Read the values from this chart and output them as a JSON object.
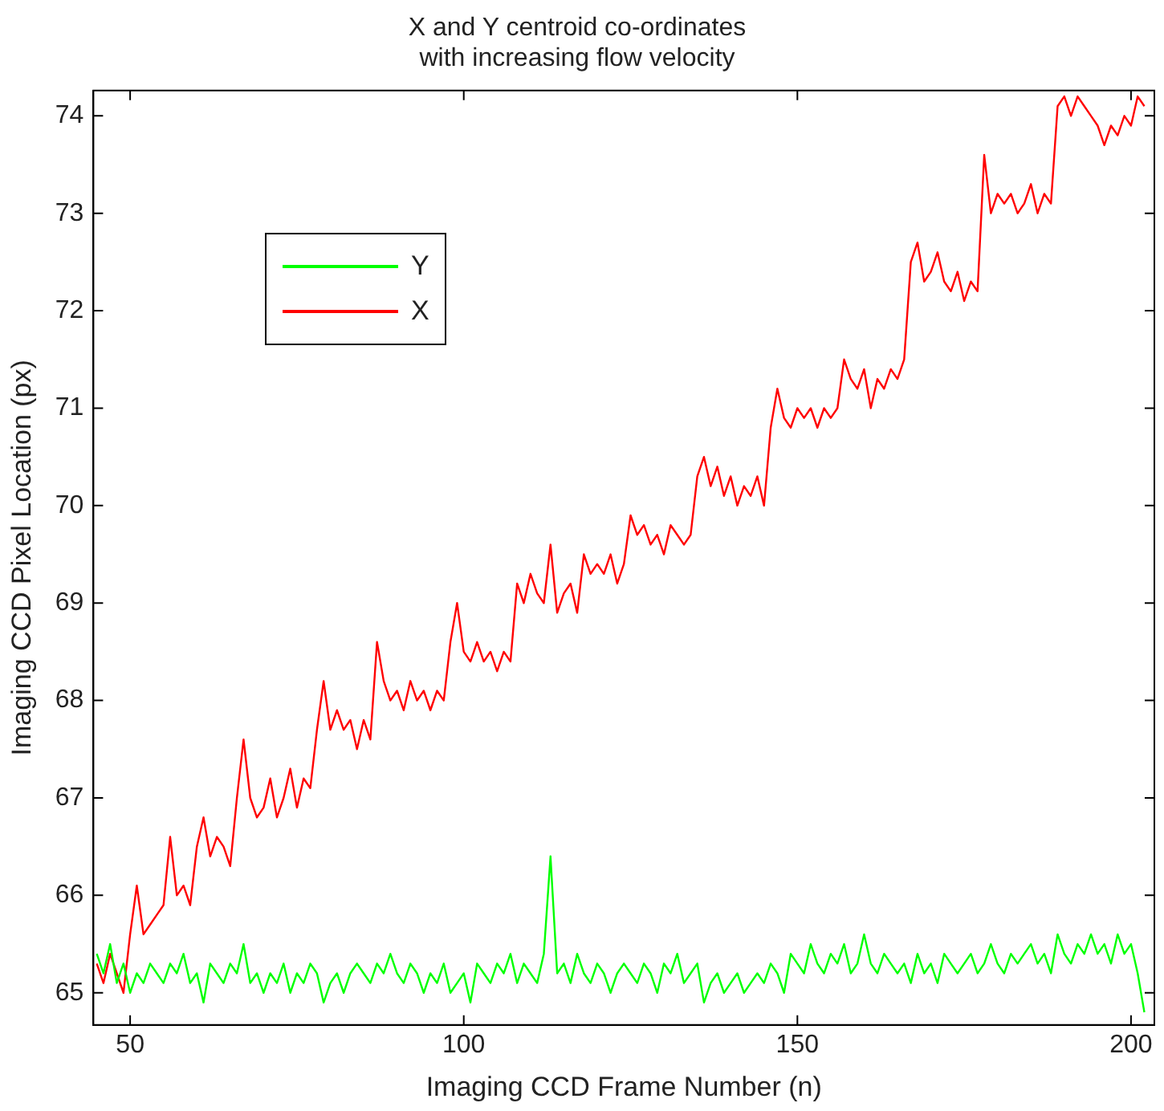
{
  "chart_data": {
    "type": "line",
    "title": "X and Y centroid co-ordinates\nwith increasing flow velocity",
    "xlabel": "Imaging CCD Frame Number (n)",
    "ylabel": "Imaging CCD Pixel Location (px)",
    "x": [
      45,
      46,
      47,
      48,
      49,
      50,
      51,
      52,
      53,
      54,
      55,
      56,
      57,
      58,
      59,
      60,
      61,
      62,
      63,
      64,
      65,
      66,
      67,
      68,
      69,
      70,
      71,
      72,
      73,
      74,
      75,
      76,
      77,
      78,
      79,
      80,
      81,
      82,
      83,
      84,
      85,
      86,
      87,
      88,
      89,
      90,
      91,
      92,
      93,
      94,
      95,
      96,
      97,
      98,
      99,
      100,
      101,
      102,
      103,
      104,
      105,
      106,
      107,
      108,
      109,
      110,
      111,
      112,
      113,
      114,
      115,
      116,
      117,
      118,
      119,
      120,
      121,
      122,
      123,
      124,
      125,
      126,
      127,
      128,
      129,
      130,
      131,
      132,
      133,
      134,
      135,
      136,
      137,
      138,
      139,
      140,
      141,
      142,
      143,
      144,
      145,
      146,
      147,
      148,
      149,
      150,
      151,
      152,
      153,
      154,
      155,
      156,
      157,
      158,
      159,
      160,
      161,
      162,
      163,
      164,
      165,
      166,
      167,
      168,
      169,
      170,
      171,
      172,
      173,
      174,
      175,
      176,
      177,
      178,
      179,
      180,
      181,
      182,
      183,
      184,
      185,
      186,
      187,
      188,
      189,
      190,
      191,
      192,
      193,
      194,
      195,
      196,
      197,
      198,
      199,
      200,
      201,
      202
    ],
    "series": [
      {
        "name": "Y",
        "color": "#00ff00",
        "values": [
          65.4,
          65.2,
          65.5,
          65.1,
          65.3,
          65.0,
          65.2,
          65.1,
          65.3,
          65.2,
          65.1,
          65.3,
          65.2,
          65.4,
          65.1,
          65.2,
          64.9,
          65.3,
          65.2,
          65.1,
          65.3,
          65.2,
          65.5,
          65.1,
          65.2,
          65.0,
          65.2,
          65.1,
          65.3,
          65.0,
          65.2,
          65.1,
          65.3,
          65.2,
          64.9,
          65.1,
          65.2,
          65.0,
          65.2,
          65.3,
          65.2,
          65.1,
          65.3,
          65.2,
          65.4,
          65.2,
          65.1,
          65.3,
          65.2,
          65.0,
          65.2,
          65.1,
          65.3,
          65.0,
          65.1,
          65.2,
          64.9,
          65.3,
          65.2,
          65.1,
          65.3,
          65.2,
          65.4,
          65.1,
          65.3,
          65.2,
          65.1,
          65.4,
          66.4,
          65.2,
          65.3,
          65.1,
          65.4,
          65.2,
          65.1,
          65.3,
          65.2,
          65.0,
          65.2,
          65.3,
          65.2,
          65.1,
          65.3,
          65.2,
          65.0,
          65.3,
          65.2,
          65.4,
          65.1,
          65.2,
          65.3,
          64.9,
          65.1,
          65.2,
          65.0,
          65.1,
          65.2,
          65.0,
          65.1,
          65.2,
          65.1,
          65.3,
          65.2,
          65.0,
          65.4,
          65.3,
          65.2,
          65.5,
          65.3,
          65.2,
          65.4,
          65.3,
          65.5,
          65.2,
          65.3,
          65.6,
          65.3,
          65.2,
          65.4,
          65.3,
          65.2,
          65.3,
          65.1,
          65.4,
          65.2,
          65.3,
          65.1,
          65.4,
          65.3,
          65.2,
          65.3,
          65.4,
          65.2,
          65.3,
          65.5,
          65.3,
          65.2,
          65.4,
          65.3,
          65.4,
          65.5,
          65.3,
          65.4,
          65.2,
          65.6,
          65.4,
          65.3,
          65.5,
          65.4,
          65.6,
          65.4,
          65.5,
          65.3,
          65.6,
          65.4,
          65.5,
          65.2,
          64.8
        ]
      },
      {
        "name": "X",
        "color": "#ff0000",
        "values": [
          65.3,
          65.1,
          65.4,
          65.2,
          65.0,
          65.6,
          66.1,
          65.6,
          65.7,
          65.8,
          65.9,
          66.6,
          66.0,
          66.1,
          65.9,
          66.5,
          66.8,
          66.4,
          66.6,
          66.5,
          66.3,
          67.0,
          67.6,
          67.0,
          66.8,
          66.9,
          67.2,
          66.8,
          67.0,
          67.3,
          66.9,
          67.2,
          67.1,
          67.7,
          68.2,
          67.7,
          67.9,
          67.7,
          67.8,
          67.5,
          67.8,
          67.6,
          68.6,
          68.2,
          68.0,
          68.1,
          67.9,
          68.2,
          68.0,
          68.1,
          67.9,
          68.1,
          68.0,
          68.6,
          69.0,
          68.5,
          68.4,
          68.6,
          68.4,
          68.5,
          68.3,
          68.5,
          68.4,
          69.2,
          69.0,
          69.3,
          69.1,
          69.0,
          69.6,
          68.9,
          69.1,
          69.2,
          68.9,
          69.5,
          69.3,
          69.4,
          69.3,
          69.5,
          69.2,
          69.4,
          69.9,
          69.7,
          69.8,
          69.6,
          69.7,
          69.5,
          69.8,
          69.7,
          69.6,
          69.7,
          70.3,
          70.5,
          70.2,
          70.4,
          70.1,
          70.3,
          70.0,
          70.2,
          70.1,
          70.3,
          70.0,
          70.8,
          71.2,
          70.9,
          70.8,
          71.0,
          70.9,
          71.0,
          70.8,
          71.0,
          70.9,
          71.0,
          71.5,
          71.3,
          71.2,
          71.4,
          71.0,
          71.3,
          71.2,
          71.4,
          71.3,
          71.5,
          72.5,
          72.7,
          72.3,
          72.4,
          72.6,
          72.3,
          72.2,
          72.4,
          72.1,
          72.3,
          72.2,
          73.6,
          73.0,
          73.2,
          73.1,
          73.2,
          73.0,
          73.1,
          73.3,
          73.0,
          73.2,
          73.1,
          74.1,
          74.2,
          74.0,
          74.2,
          74.1,
          74.0,
          73.9,
          73.7,
          73.9,
          73.8,
          74.0,
          73.9,
          74.2,
          74.1
        ]
      }
    ],
    "xlim": [
      44.5,
      203.5
    ],
    "xticks": [
      50,
      100,
      150,
      200
    ],
    "ylim": [
      64.67,
      74.26
    ],
    "yticks": [
      65,
      66,
      67,
      68,
      69,
      70,
      71,
      72,
      73,
      74
    ],
    "grid": false,
    "legend": "top left",
    "marker": "none",
    "line_style": "solid"
  }
}
